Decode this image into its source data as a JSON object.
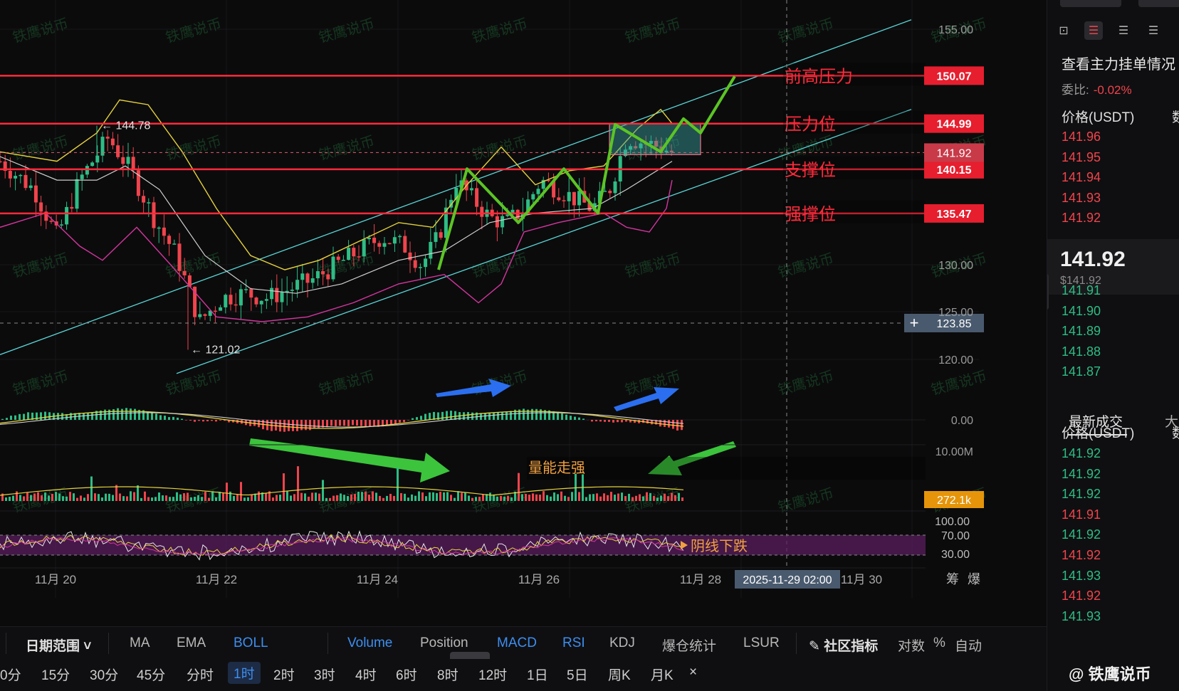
{
  "chart_data": {
    "type": "candlestick",
    "pair_quote": "USDT",
    "x_ticks": [
      "11月 20",
      "11月 22",
      "11月 24",
      "11月 26",
      "11月 28",
      "11月 30"
    ],
    "crosshair_time": "2025-11-29 02:00",
    "y_ticks": [
      "155.00",
      "130.00",
      "125.00",
      "120.00"
    ],
    "horizontal_levels": [
      {
        "label": "前高压力",
        "value": 150.07,
        "price_tag": "150.07"
      },
      {
        "label": "压力位",
        "value": 144.99,
        "price_tag": "144.99"
      },
      {
        "label": "支撑位",
        "value": 140.15,
        "price_tag": "140.15"
      },
      {
        "label": "强撑位",
        "value": 135.47,
        "price_tag": "135.47"
      }
    ],
    "last_price": {
      "value": 141.92,
      "tag": "141.92"
    },
    "crosshair_price": {
      "value": 123.85,
      "tag": "123.85"
    },
    "high_marker": {
      "value": 144.78,
      "text": "← 144.78"
    },
    "low_marker": {
      "value": 121.02,
      "text": "← 121.02"
    },
    "price_path": [
      {
        "t": 0,
        "v": 141.0
      },
      {
        "t": 6,
        "v": 138.0
      },
      {
        "t": 10,
        "v": 133.0
      },
      {
        "t": 14,
        "v": 139.0
      },
      {
        "t": 19,
        "v": 143.5
      },
      {
        "t": 23,
        "v": 140.0
      },
      {
        "t": 27,
        "v": 135.0
      },
      {
        "t": 31,
        "v": 131.0
      },
      {
        "t": 35,
        "v": 124.0
      },
      {
        "t": 39,
        "v": 126.5
      },
      {
        "t": 43,
        "v": 127.0
      },
      {
        "t": 47,
        "v": 126.5
      },
      {
        "t": 51,
        "v": 127.5
      },
      {
        "t": 55,
        "v": 128.5
      },
      {
        "t": 59,
        "v": 130.0
      },
      {
        "t": 63,
        "v": 131.5
      },
      {
        "t": 67,
        "v": 133.0
      },
      {
        "t": 71,
        "v": 132.0
      },
      {
        "t": 74,
        "v": 130.0
      },
      {
        "t": 77,
        "v": 133.0
      },
      {
        "t": 80,
        "v": 139.0
      },
      {
        "t": 83,
        "v": 137.0
      },
      {
        "t": 86,
        "v": 135.0
      },
      {
        "t": 89,
        "v": 134.5
      },
      {
        "t": 92,
        "v": 136.0
      },
      {
        "t": 95,
        "v": 139.0
      },
      {
        "t": 98,
        "v": 138.0
      },
      {
        "t": 101,
        "v": 137.0
      },
      {
        "t": 104,
        "v": 136.0
      },
      {
        "t": 107,
        "v": 138.0
      },
      {
        "t": 110,
        "v": 143.5
      },
      {
        "t": 113,
        "v": 143.0
      },
      {
        "t": 116,
        "v": 142.5
      },
      {
        "t": 118,
        "v": 141.92
      }
    ],
    "boll_upper": [
      {
        "t": 0,
        "v": 142.0
      },
      {
        "t": 10,
        "v": 141.0
      },
      {
        "t": 17,
        "v": 144.0
      },
      {
        "t": 21,
        "v": 147.5
      },
      {
        "t": 26,
        "v": 147.0
      },
      {
        "t": 32,
        "v": 142.0
      },
      {
        "t": 38,
        "v": 136.0
      },
      {
        "t": 44,
        "v": 131.0
      },
      {
        "t": 50,
        "v": 129.5
      },
      {
        "t": 56,
        "v": 130.5
      },
      {
        "t": 63,
        "v": 132.5
      },
      {
        "t": 70,
        "v": 134.5
      },
      {
        "t": 76,
        "v": 134.0
      },
      {
        "t": 82,
        "v": 138.5
      },
      {
        "t": 88,
        "v": 142.5
      },
      {
        "t": 94,
        "v": 138.5
      },
      {
        "t": 100,
        "v": 140.0
      },
      {
        "t": 106,
        "v": 140.5
      },
      {
        "t": 112,
        "v": 144.5
      },
      {
        "t": 116,
        "v": 146.5
      },
      {
        "t": 118,
        "v": 145.0
      }
    ],
    "boll_middle": [
      {
        "t": 0,
        "v": 141.5
      },
      {
        "t": 10,
        "v": 139.0
      },
      {
        "t": 17,
        "v": 139.0
      },
      {
        "t": 22,
        "v": 140.5
      },
      {
        "t": 28,
        "v": 138.0
      },
      {
        "t": 36,
        "v": 131.0
      },
      {
        "t": 44,
        "v": 127.5
      },
      {
        "t": 52,
        "v": 127.0
      },
      {
        "t": 60,
        "v": 128.0
      },
      {
        "t": 70,
        "v": 130.5
      },
      {
        "t": 78,
        "v": 131.5
      },
      {
        "t": 86,
        "v": 134.5
      },
      {
        "t": 94,
        "v": 135.5
      },
      {
        "t": 104,
        "v": 136.0
      },
      {
        "t": 110,
        "v": 138.0
      },
      {
        "t": 118,
        "v": 141.0
      }
    ],
    "boll_lower": [
      {
        "t": 0,
        "v": 134.0
      },
      {
        "t": 8,
        "v": 135.5
      },
      {
        "t": 14,
        "v": 132.0
      },
      {
        "t": 18,
        "v": 130.5
      },
      {
        "t": 24,
        "v": 134.0
      },
      {
        "t": 30,
        "v": 130.0
      },
      {
        "t": 38,
        "v": 124.5
      },
      {
        "t": 46,
        "v": 124.0
      },
      {
        "t": 54,
        "v": 124.5
      },
      {
        "t": 62,
        "v": 126.0
      },
      {
        "t": 70,
        "v": 128.0
      },
      {
        "t": 78,
        "v": 129.0
      },
      {
        "t": 84,
        "v": 126.0
      },
      {
        "t": 88,
        "v": 128.0
      },
      {
        "t": 92,
        "v": 133.5
      },
      {
        "t": 98,
        "v": 134.5
      },
      {
        "t": 106,
        "v": 135.5
      },
      {
        "t": 110,
        "v": 134.0
      },
      {
        "t": 114,
        "v": 133.5
      },
      {
        "t": 117,
        "v": 136.0
      },
      {
        "t": 118,
        "v": 139.0
      }
    ],
    "channel": {
      "upper": [
        {
          "t": 0,
          "v": 120.5
        },
        {
          "t": 160,
          "v": 156.0
        }
      ],
      "lower": [
        {
          "t": 31,
          "v": 118.5
        },
        {
          "t": 160,
          "v": 146.5
        }
      ]
    },
    "green_zigzag": [
      {
        "t": 77,
        "v": 129.5
      },
      {
        "t": 82,
        "v": 140.2
      },
      {
        "t": 91,
        "v": 134.5
      },
      {
        "t": 99,
        "v": 140.2
      },
      {
        "t": 105,
        "v": 135.5
      },
      {
        "t": 108,
        "v": 144.9
      },
      {
        "t": 116,
        "v": 142.0
      },
      {
        "t": 120,
        "v": 145.5
      },
      {
        "t": 123,
        "v": 144.0
      },
      {
        "t": 129,
        "v": 150.0
      }
    ],
    "consolidation_box": {
      "t1": 107,
      "t2": 123,
      "v1": 141.7,
      "v2": 144.99
    },
    "annotations": {
      "volume_note": "量能走强",
      "rsi_note": "阴线下跌"
    },
    "macd": {
      "zero_label": "0.00"
    },
    "volume": {
      "max_label": "10.00M",
      "current_tag": "272.1k"
    },
    "rsi": {
      "labels": [
        "100.00",
        "70.00",
        "30.00"
      ]
    }
  },
  "watermark_text": "铁鹰说币",
  "toolbar": {
    "date_range": "日期范围",
    "indicators": [
      "MA",
      "EMA",
      "BOLL",
      "Volume",
      "Position",
      "MACD",
      "RSI",
      "KDJ",
      "爆仓统计",
      "LSUR"
    ],
    "active_indicators": [
      "BOLL",
      "Volume",
      "MACD",
      "RSI"
    ],
    "community": "社区指标",
    "log": "对数",
    "percent": "%",
    "auto": "自动",
    "chip": "筹",
    "burst": "爆",
    "timeframes": [
      "0分",
      "15分",
      "30分",
      "45分",
      "分时",
      "1时",
      "2时",
      "3时",
      "4时",
      "6时",
      "8时",
      "12时",
      "1日",
      "5日",
      "周K",
      "月K"
    ],
    "active_timeframe": "1时",
    "close_glyph": "×"
  },
  "sidebar": {
    "title": "查看主力挂单情况",
    "ratio_label": "委比:",
    "ratio_value": "-0.02%",
    "price_header": "价格(USDT)",
    "qty_header": "数",
    "asks": [
      "141.96",
      "141.95",
      "141.94",
      "141.93",
      "141.92"
    ],
    "current_price": "141.92",
    "current_usd": "$141.92",
    "bids": [
      "141.91",
      "141.90",
      "141.89",
      "141.88",
      "141.87"
    ],
    "tab_latest": "最新成交",
    "tab_big": "大",
    "trades_header": "价格(USDT)",
    "trades_qty_header": "数",
    "trades": [
      {
        "p": "141.92",
        "side": "buy"
      },
      {
        "p": "141.92",
        "side": "buy"
      },
      {
        "p": "141.92",
        "side": "buy"
      },
      {
        "p": "141.91",
        "side": "sell"
      },
      {
        "p": "141.92",
        "side": "buy"
      },
      {
        "p": "141.92",
        "side": "sell"
      },
      {
        "p": "141.93",
        "side": "buy"
      },
      {
        "p": "141.92",
        "side": "sell"
      },
      {
        "p": "141.93",
        "side": "buy"
      }
    ],
    "brand": "@ 铁鹰说币"
  },
  "colors": {
    "bg": "#0b0b0c",
    "up": "#2ebd85",
    "down": "#f0444c",
    "level": "#ff2a3a",
    "boll_upper": "#e6d23a",
    "boll_middle": "#cfcfcf",
    "boll_lower": "#d6359f",
    "channel": "#5ad6d6",
    "zigzag": "#5cc424",
    "arrow_blue": "#2b6ff0",
    "arrow_green": "#3cc43c"
  }
}
